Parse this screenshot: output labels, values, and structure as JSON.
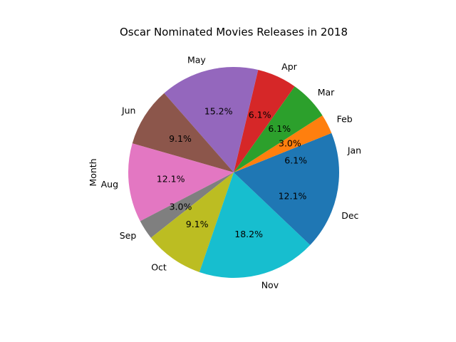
{
  "chart_data": {
    "type": "pie",
    "title": "Oscar Nominated Movies Releases in 2018",
    "ylabel": "Month",
    "start_angle_deg": 0,
    "direction": "counterclockwise",
    "slices": [
      {
        "label": "Jan",
        "value": 6.1,
        "pct_label": "6.1%",
        "color": "#1f77b4"
      },
      {
        "label": "Feb",
        "value": 3.0,
        "pct_label": "3.0%",
        "color": "#ff7f0e"
      },
      {
        "label": "Mar",
        "value": 6.1,
        "pct_label": "6.1%",
        "color": "#2ca02c"
      },
      {
        "label": "Apr",
        "value": 6.1,
        "pct_label": "6.1%",
        "color": "#d62728"
      },
      {
        "label": "May",
        "value": 15.2,
        "pct_label": "15.2%",
        "color": "#9467bd"
      },
      {
        "label": "Jun",
        "value": 9.1,
        "pct_label": "9.1%",
        "color": "#8c564b"
      },
      {
        "label": "Aug",
        "value": 12.1,
        "pct_label": "12.1%",
        "color": "#e377c2"
      },
      {
        "label": "Sep",
        "value": 3.0,
        "pct_label": "3.0%",
        "color": "#7f7f7f"
      },
      {
        "label": "Oct",
        "value": 9.1,
        "pct_label": "9.1%",
        "color": "#bcbd22"
      },
      {
        "label": "Nov",
        "value": 18.2,
        "pct_label": "18.2%",
        "color": "#17becf"
      },
      {
        "label": "Dec",
        "value": 12.1,
        "pct_label": "12.1%",
        "color": "#1f77b4"
      }
    ]
  }
}
